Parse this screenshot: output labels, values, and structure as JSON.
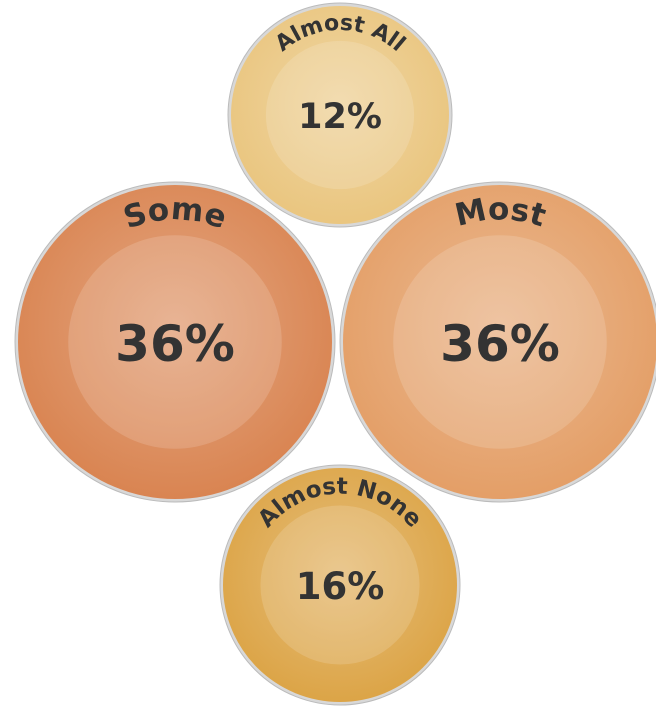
{
  "chart_data": {
    "type": "coins",
    "categories": [
      "Almost All",
      "Some",
      "Most",
      "Almost None"
    ],
    "values": [
      12,
      36,
      36,
      16
    ],
    "value_labels": [
      "12%",
      "36%",
      "36%",
      "16%"
    ],
    "colors": [
      "#e9c47c",
      "#d8814d",
      "#e39c63",
      "#dba242"
    ]
  }
}
